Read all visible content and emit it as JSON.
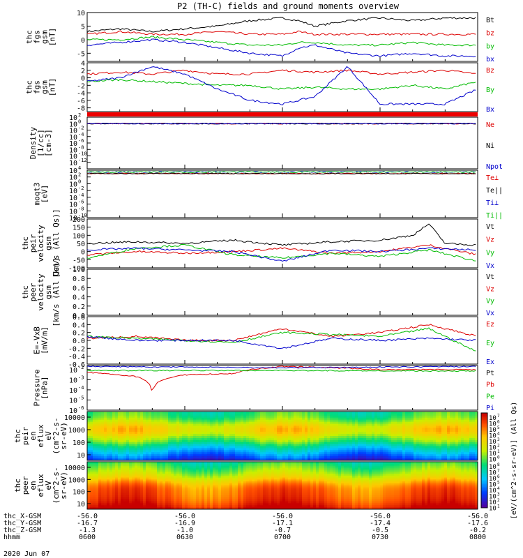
{
  "chart_data": {
    "type": "line",
    "title": "P2 (TH-C) fields and ground moments overview",
    "date_label": "2020 Jun 07",
    "panels": [
      {
        "ylabel": [
          "thc",
          "fgs",
          "gsm",
          "[nT]"
        ],
        "yrange": [
          -8,
          10
        ],
        "yticks": [
          10,
          5,
          0,
          -5
        ],
        "series": [
          {
            "name": "Bt",
            "color": "#000000",
            "x": [
              "06:00",
              "06:10",
              "06:20",
              "06:30",
              "06:40",
              "06:50",
              "07:00",
              "07:05",
              "07:10",
              "07:20",
              "07:30",
              "07:40",
              "07:50",
              "08:00"
            ],
            "values": [
              3,
              4,
              3,
              4,
              5,
              7,
              8,
              7,
              5,
              7,
              8,
              7,
              8,
              8
            ]
          },
          {
            "name": "bz",
            "color": "#dd0000",
            "x": [
              "06:00",
              "06:10",
              "06:20",
              "06:30",
              "06:40",
              "06:50",
              "07:00",
              "07:05",
              "07:10",
              "07:20",
              "07:30",
              "07:40",
              "07:50",
              "08:00"
            ],
            "values": [
              2,
              3,
              2,
              2,
              3,
              2,
              2,
              3,
              2,
              2,
              2,
              2,
              2,
              2
            ]
          },
          {
            "name": "by",
            "color": "#00bb00",
            "x": [
              "06:00",
              "06:10",
              "06:20",
              "06:30",
              "06:40",
              "06:50",
              "07:00",
              "07:05",
              "07:10",
              "07:20",
              "07:30",
              "07:40",
              "07:50",
              "08:00"
            ],
            "values": [
              0,
              0,
              1,
              0,
              -1,
              -2,
              -2,
              -1,
              -1,
              -2,
              -2,
              -1,
              -2,
              -2
            ]
          },
          {
            "name": "bx",
            "color": "#0000cc",
            "x": [
              "06:00",
              "06:10",
              "06:20",
              "06:30",
              "06:40",
              "06:50",
              "07:00",
              "07:05",
              "07:10",
              "07:20",
              "07:30",
              "07:40",
              "07:50",
              "08:00"
            ],
            "values": [
              -2,
              -1,
              0,
              -1,
              -3,
              -5,
              -6,
              -3,
              -2,
              -5,
              -6,
              -5,
              -6,
              -6
            ]
          }
        ]
      },
      {
        "ylabel": [
          "thc",
          "fgs",
          "gsm",
          "[nT]"
        ],
        "yrange": [
          -9,
          4
        ],
        "yticks": [
          4,
          2,
          0,
          -2,
          -4,
          -6,
          -8
        ],
        "series": [
          {
            "name": "Bz",
            "color": "#dd0000",
            "x": [
              "06:00",
              "06:10",
              "06:20",
              "06:30",
              "06:40",
              "06:50",
              "07:00",
              "07:10",
              "07:20",
              "07:30",
              "07:40",
              "07:50",
              "08:00"
            ],
            "values": [
              1,
              1.5,
              1,
              2,
              1,
              1,
              2,
              1.5,
              2,
              1,
              1.5,
              2,
              1
            ]
          },
          {
            "name": "By",
            "color": "#00bb00",
            "x": [
              "06:00",
              "06:10",
              "06:20",
              "06:30",
              "06:40",
              "06:50",
              "07:00",
              "07:10",
              "07:20",
              "07:30",
              "07:40",
              "07:50",
              "08:00"
            ],
            "values": [
              -1,
              -0.5,
              -1,
              -1.5,
              -2,
              -2,
              -3,
              -2.5,
              -3,
              -3,
              -2,
              -3,
              -1
            ]
          },
          {
            "name": "Bx",
            "color": "#0000cc",
            "x": [
              "06:00",
              "06:10",
              "06:20",
              "06:30",
              "06:40",
              "06:50",
              "07:00",
              "07:10",
              "07:20",
              "07:30",
              "07:40",
              "07:50",
              "08:00"
            ],
            "values": [
              -1,
              0,
              3,
              1,
              -3,
              -6,
              -7,
              -5,
              3,
              -7,
              -7,
              -7,
              -3
            ]
          }
        ]
      },
      {
        "ylabel": [
          "Density",
          "[1/cc]",
          "[cm-3]"
        ],
        "yrange_log": [
          -14,
          2
        ],
        "yticks": [
          "10",
          "10",
          "10",
          "10",
          "10",
          "10",
          "10",
          "10"
        ],
        "ytick_exps": [
          "2",
          "0",
          "-2",
          "-4",
          "-6",
          "-8",
          "-10",
          "-12"
        ],
        "series": [
          {
            "name": "Ne",
            "color": "#dd0000",
            "x": [
              "06:00",
              "07:00",
              "08:00"
            ],
            "values": [
              1,
              1,
              1
            ]
          },
          {
            "name": "Ni",
            "color": "#000000",
            "x": [
              "06:00",
              "07:00",
              "08:00"
            ],
            "values": [
              1,
              1,
              1
            ]
          },
          {
            "name": "Npot",
            "color": "#0000cc",
            "x": [
              "06:00",
              "07:00",
              "08:00"
            ],
            "values": [
              1,
              1,
              1
            ]
          }
        ]
      },
      {
        "ylabel": [
          "moqt3",
          "[eV]"
        ],
        "yrange_log": [
          -10,
          4
        ],
        "yticks": [
          "10",
          "10",
          "10",
          "10",
          "10",
          "10",
          "10",
          "10"
        ],
        "ytick_exps": [
          "4",
          "2",
          "0",
          "-2",
          "-4",
          "-6",
          "-8",
          "-10"
        ],
        "series": [
          {
            "name": "Te⊥",
            "color": "#dd0000",
            "x": [
              "06:00",
              "07:00",
              "08:00"
            ],
            "values": [
              1000,
              1000,
              1000
            ]
          },
          {
            "name": "Te||",
            "color": "#000000",
            "x": [
              "06:00",
              "07:00",
              "08:00"
            ],
            "values": [
              1000,
              1000,
              1000
            ]
          },
          {
            "name": "Ti⊥",
            "color": "#0000cc",
            "x": [
              "06:00",
              "07:00",
              "08:00"
            ],
            "values": [
              3000,
              3000,
              3000
            ]
          },
          {
            "name": "Ti||",
            "color": "#00bb00",
            "x": [
              "06:00",
              "07:00",
              "08:00"
            ],
            "values": [
              3000,
              3000,
              3000
            ]
          }
        ]
      },
      {
        "ylabel": [
          "thc",
          "peir",
          "velocity",
          "gsm",
          "[km/s (All Qs)]"
        ],
        "yrange": [
          -100,
          200
        ],
        "yticks": [
          200,
          150,
          100,
          50,
          0,
          -50,
          -100
        ],
        "series": [
          {
            "name": "Vt",
            "color": "#000000",
            "x": [
              "06:00",
              "06:15",
              "06:30",
              "06:45",
              "07:00",
              "07:15",
              "07:30",
              "07:40",
              "07:45",
              "07:50",
              "08:00"
            ],
            "values": [
              50,
              60,
              50,
              70,
              40,
              60,
              70,
              100,
              170,
              50,
              40
            ]
          },
          {
            "name": "Vz",
            "color": "#dd0000",
            "x": [
              "06:00",
              "06:15",
              "06:30",
              "06:45",
              "07:00",
              "07:15",
              "07:30",
              "07:45",
              "08:00"
            ],
            "values": [
              -20,
              0,
              -10,
              0,
              20,
              -10,
              0,
              40,
              -20
            ]
          },
          {
            "name": "Vy",
            "color": "#00bb00",
            "x": [
              "06:00",
              "06:15",
              "06:30",
              "06:45",
              "07:00",
              "07:15",
              "07:30",
              "07:45",
              "08:00"
            ],
            "values": [
              -40,
              20,
              40,
              -20,
              -40,
              -10,
              -30,
              10,
              -60
            ]
          },
          {
            "name": "Vx",
            "color": "#0000cc",
            "x": [
              "06:00",
              "06:15",
              "06:30",
              "06:45",
              "07:00",
              "07:15",
              "07:30",
              "07:45",
              "08:00"
            ],
            "values": [
              10,
              20,
              10,
              0,
              -60,
              10,
              0,
              20,
              10
            ]
          }
        ]
      },
      {
        "ylabel": [
          "thc",
          "peer",
          "velocity",
          "gsm",
          "[km/s (All Qs)]"
        ],
        "yrange": [
          0,
          1
        ],
        "yticks": [
          1.0,
          0.8,
          0.6,
          0.4,
          0.2,
          0.0
        ],
        "series": [
          {
            "name": "Vt",
            "color": "#000000",
            "x": [],
            "values": []
          },
          {
            "name": "Vz",
            "color": "#dd0000",
            "x": [],
            "values": []
          },
          {
            "name": "Vy",
            "color": "#00bb00",
            "x": [],
            "values": []
          },
          {
            "name": "Vx",
            "color": "#0000cc",
            "x": [],
            "values": []
          }
        ]
      },
      {
        "ylabel": [
          "E=-VxB",
          "[mV/m]"
        ],
        "yrange": [
          -0.6,
          0.6
        ],
        "yticks": [
          0.6,
          0.4,
          0.2,
          0.0,
          -0.2,
          -0.4,
          -0.6
        ],
        "series": [
          {
            "name": "Ez",
            "color": "#dd0000",
            "x": [
              "06:00",
              "06:15",
              "06:30",
              "06:45",
              "07:00",
              "07:15",
              "07:30",
              "07:45",
              "08:00"
            ],
            "values": [
              0.05,
              0.1,
              0.0,
              0.0,
              0.3,
              0.1,
              0.2,
              0.4,
              0.1
            ]
          },
          {
            "name": "Ey",
            "color": "#00bb00",
            "x": [
              "06:00",
              "06:15",
              "06:30",
              "06:45",
              "07:00",
              "07:15",
              "07:30",
              "07:45",
              "08:00"
            ],
            "values": [
              0.1,
              0.05,
              0.0,
              -0.05,
              0.2,
              0.15,
              0.1,
              0.3,
              -0.3
            ]
          },
          {
            "name": "Ex",
            "color": "#0000cc",
            "x": [
              "06:00",
              "06:15",
              "06:30",
              "06:45",
              "07:00",
              "07:15",
              "07:30",
              "07:45",
              "08:00"
            ],
            "values": [
              0.1,
              0.0,
              0.0,
              0.0,
              -0.2,
              0.05,
              0.0,
              0.05,
              0.0
            ]
          }
        ]
      },
      {
        "ylabel": [
          "Pressure",
          "[nPa]"
        ],
        "yrange_log": [
          -6,
          -1.6
        ],
        "yticks": [
          "10",
          "10",
          "10",
          "10",
          "10"
        ],
        "ytick_exps": [
          "-2",
          "-3",
          "-4",
          "-5",
          "-6"
        ],
        "series": [
          {
            "name": "Pt",
            "color": "#000000",
            "x": [
              "06:00",
              "07:00",
              "08:00"
            ],
            "values": [
              0.03,
              0.03,
              0.03
            ]
          },
          {
            "name": "Pb",
            "color": "#dd0000",
            "x": [
              "06:00",
              "06:15",
              "06:20",
              "06:30",
              "06:45",
              "07:00",
              "07:30",
              "08:00"
            ],
            "values": [
              0.005,
              0.002,
              2e-05,
              0.003,
              0.004,
              0.02,
              0.01,
              0.01
            ]
          },
          {
            "name": "Pe",
            "color": "#00bb00",
            "x": [
              "06:00",
              "07:00",
              "08:00"
            ],
            "values": [
              0.008,
              0.008,
              0.007
            ]
          },
          {
            "name": "Pi",
            "color": "#0000cc",
            "x": [
              "06:00",
              "07:00",
              "08:00"
            ],
            "values": [
              0.02,
              0.015,
              0.02
            ]
          }
        ]
      },
      {
        "type": "heatmap",
        "ylabel": [
          "thc",
          "peir",
          "en",
          "eflux",
          "eV",
          "(cm^2-s-",
          "sr-eV)"
        ],
        "yticks": [
          10000,
          1000,
          100,
          10
        ]
      },
      {
        "type": "heatmap",
        "ylabel": [
          "thc",
          "peer",
          "en",
          "eflux",
          "eV",
          "(cm^2-s-",
          "sr-eV)"
        ],
        "yticks": [
          10000,
          1000,
          100,
          10
        ]
      }
    ],
    "colorbar": {
      "label": "[eV/(cm^2-s-sr-eV)] (All Qs)",
      "top_ticks": [
        "7",
        "6",
        "5",
        "4",
        "3",
        "2",
        "1",
        "0"
      ],
      "bottom_ticks": [
        "8",
        "7",
        "6",
        "5",
        "4",
        "3",
        "2",
        "1"
      ]
    },
    "x_axis": {
      "rows": [
        {
          "label": "thc_X-GSM",
          "values": [
            "-56.0",
            "-56.0",
            "-56.0",
            "-56.0",
            "-56.0"
          ]
        },
        {
          "label": "thc_Y-GSM",
          "values": [
            "-16.7",
            "-16.9",
            "-17.1",
            "-17.4",
            "-17.6"
          ]
        },
        {
          "label": "thc_Z-GSM",
          "values": [
            "-1.3",
            "-1.0",
            "-0.7",
            "-0.5",
            "-0.2"
          ]
        },
        {
          "label": "hhmm",
          "values": [
            "0600",
            "0630",
            "0700",
            "0730",
            "0800"
          ]
        }
      ]
    }
  }
}
